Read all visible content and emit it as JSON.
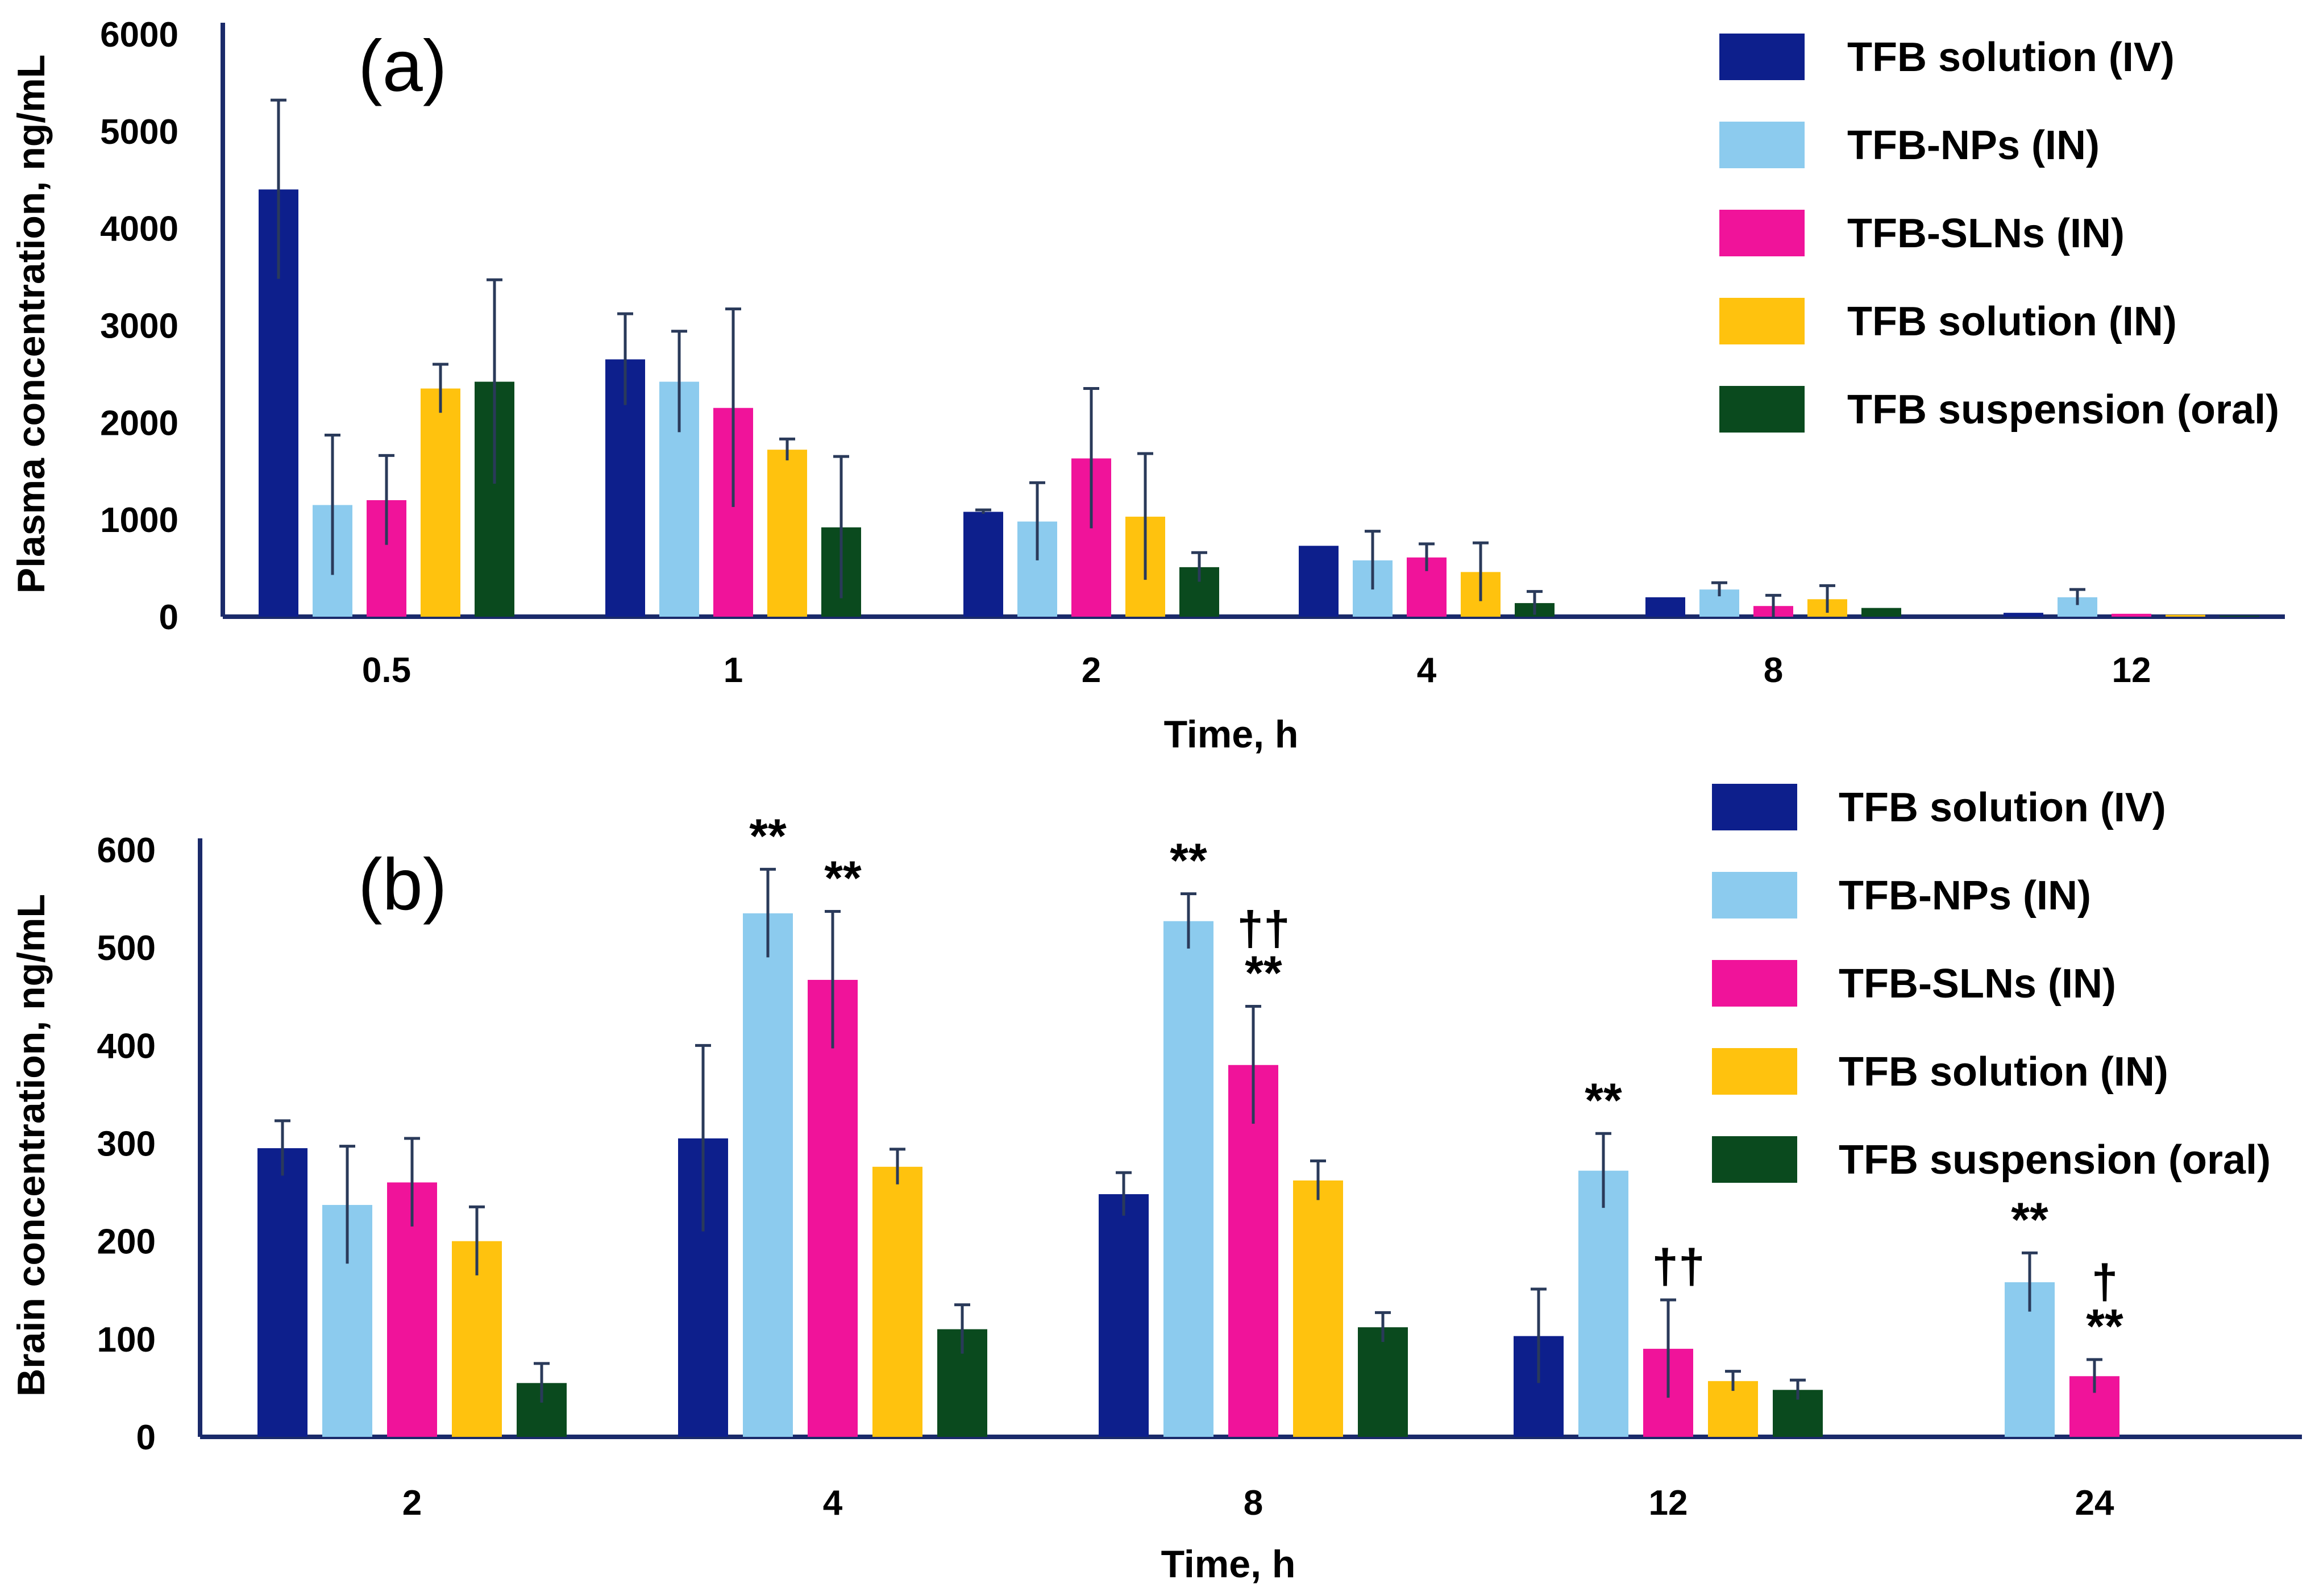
{
  "chart_data": [
    {
      "type": "bar",
      "panel_label": "(a)",
      "xlabel": "Time, h",
      "ylabel": "Plasma concentration, ng/mL",
      "ylim": [
        0,
        6000
      ],
      "yticks": [
        "0",
        "1000",
        "2000",
        "3000",
        "4000",
        "5000",
        "6000"
      ],
      "categories": [
        "0.5",
        "1",
        "2",
        "4",
        "8",
        "12"
      ],
      "legend_position": "top-right",
      "series": [
        {
          "name": "TFB solution (IV)",
          "color": "#0d1f8c",
          "values": [
            4400,
            2650,
            1080,
            730,
            200,
            40
          ],
          "errors": [
            920,
            470,
            20,
            0,
            0,
            0
          ]
        },
        {
          "name": "TFB-NPs (IN)",
          "color": "#8ccbee",
          "values": [
            1150,
            2420,
            980,
            580,
            280,
            200
          ],
          "errors": [
            720,
            520,
            400,
            300,
            70,
            80
          ]
        },
        {
          "name": "TFB-SLNs (IN)",
          "color": "#f0139a",
          "values": [
            1200,
            2150,
            1630,
            610,
            110,
            30
          ],
          "errors": [
            460,
            1020,
            720,
            140,
            110,
            0
          ]
        },
        {
          "name": "TFB solution (IN)",
          "color": "#ffc20e",
          "values": [
            2350,
            1720,
            1030,
            460,
            180,
            20
          ],
          "errors": [
            250,
            110,
            650,
            300,
            140,
            0
          ]
        },
        {
          "name": "TFB suspension (oral)",
          "color": "#0a4a1e",
          "values": [
            2420,
            920,
            510,
            140,
            90,
            10
          ],
          "errors": [
            1050,
            730,
            150,
            120,
            0,
            0
          ]
        }
      ],
      "annotations": []
    },
    {
      "type": "bar",
      "panel_label": "(b)",
      "xlabel": "Time, h",
      "ylabel": "Brain concentration, ng/mL",
      "ylim": [
        0,
        600
      ],
      "yticks": [
        "0",
        "100",
        "200",
        "300",
        "400",
        "500",
        "600"
      ],
      "categories": [
        "2",
        "4",
        "8",
        "12",
        "24"
      ],
      "legend_position": "top-right",
      "series": [
        {
          "name": "TFB solution (IV)",
          "color": "#0d1f8c",
          "values": [
            295,
            305,
            248,
            103,
            null
          ],
          "errors": [
            28,
            95,
            22,
            48,
            null
          ]
        },
        {
          "name": "TFB-NPs (IN)",
          "color": "#8ccbee",
          "values": [
            237,
            535,
            527,
            272,
            158
          ],
          "errors": [
            60,
            45,
            28,
            38,
            30
          ]
        },
        {
          "name": "TFB-SLNs (IN)",
          "color": "#f0139a",
          "values": [
            260,
            467,
            380,
            90,
            62
          ],
          "errors": [
            45,
            70,
            60,
            50,
            17
          ]
        },
        {
          "name": "TFB solution (IN)",
          "color": "#ffc20e",
          "values": [
            200,
            276,
            262,
            57,
            null
          ],
          "errors": [
            35,
            18,
            20,
            10,
            null
          ]
        },
        {
          "name": "TFB suspension (oral)",
          "color": "#0a4a1e",
          "values": [
            55,
            110,
            112,
            48,
            null
          ],
          "errors": [
            20,
            25,
            15,
            10,
            null
          ]
        }
      ],
      "annotations": [
        {
          "text": "**",
          "category": 1,
          "series": 1,
          "level": 1
        },
        {
          "text": "**",
          "category": 1,
          "series": 2,
          "level": 1
        },
        {
          "text": "**",
          "category": 2,
          "series": 1,
          "level": 1
        },
        {
          "text": "††",
          "category": 2,
          "series": 2,
          "level": 2
        },
        {
          "text": "**",
          "category": 2,
          "series": 2,
          "level": 1
        },
        {
          "text": "**",
          "category": 3,
          "series": 1,
          "level": 1
        },
        {
          "text": "††",
          "category": 3,
          "series": 2,
          "level": 1
        },
        {
          "text": "**",
          "category": 4,
          "series": 1,
          "level": 1
        },
        {
          "text": "†",
          "category": 4,
          "series": 2,
          "level": 2
        },
        {
          "text": "**",
          "category": 4,
          "series": 2,
          "level": 1
        }
      ]
    }
  ]
}
